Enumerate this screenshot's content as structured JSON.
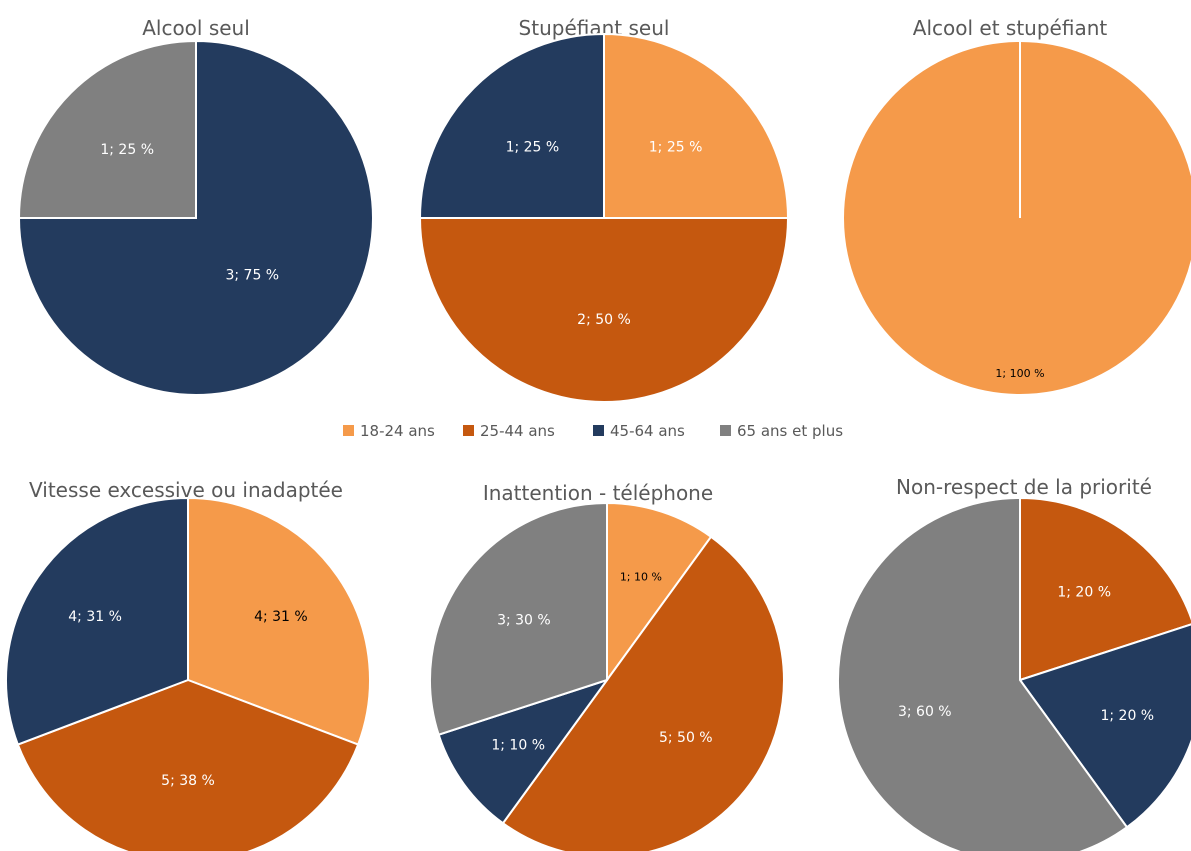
{
  "chart_data": [
    {
      "type": "pie",
      "title": "Alcool seul",
      "slices": [
        {
          "category": "45-64 ans",
          "value": 3,
          "label": "3; 75 %"
        },
        {
          "category": "65 ans et plus",
          "value": 1,
          "label": "1; 25 %"
        }
      ]
    },
    {
      "type": "pie",
      "title": "Stupéfiant seul",
      "slices": [
        {
          "category": "18-24 ans",
          "value": 1,
          "label": "1; 25 %"
        },
        {
          "category": "25-44 ans",
          "value": 2,
          "label": "2; 50 %"
        },
        {
          "category": "45-64 ans",
          "value": 1,
          "label": "1; 25 %"
        }
      ]
    },
    {
      "type": "pie",
      "title": "Alcool et stupéfiant",
      "slices": [
        {
          "category": "18-24 ans",
          "value": 1,
          "label": "1; 100 %"
        }
      ]
    },
    {
      "type": "pie",
      "title": "Vitesse excessive ou inadaptée",
      "slices": [
        {
          "category": "18-24 ans",
          "value": 4,
          "label": "4; 31 %"
        },
        {
          "category": "25-44 ans",
          "value": 5,
          "label": "5; 38 %"
        },
        {
          "category": "45-64 ans",
          "value": 4,
          "label": "4; 31 %"
        }
      ]
    },
    {
      "type": "pie",
      "title": "Inattention - téléphone",
      "slices": [
        {
          "category": "18-24 ans",
          "value": 1,
          "label": "1; 10 %"
        },
        {
          "category": "25-44 ans",
          "value": 5,
          "label": "5; 50 %"
        },
        {
          "category": "45-64 ans",
          "value": 1,
          "label": "1; 10 %"
        },
        {
          "category": "65 ans et plus",
          "value": 3,
          "label": "3; 30 %"
        }
      ]
    },
    {
      "type": "pie",
      "title": "Non-respect de la priorité",
      "slices": [
        {
          "category": "25-44 ans",
          "value": 1,
          "label": "1; 20 %"
        },
        {
          "category": "45-64 ans",
          "value": 1,
          "label": "1; 20 %"
        },
        {
          "category": "65 ans et plus",
          "value": 3,
          "label": "3; 60 %"
        }
      ]
    }
  ],
  "legend": [
    {
      "label": "18-24 ans",
      "color": "#F59A4A"
    },
    {
      "label": "25-44 ans",
      "color": "#C5580F"
    },
    {
      "label": "45-64 ans",
      "color": "#233B5E"
    },
    {
      "label": "65 ans et plus",
      "color": "#808080"
    }
  ]
}
